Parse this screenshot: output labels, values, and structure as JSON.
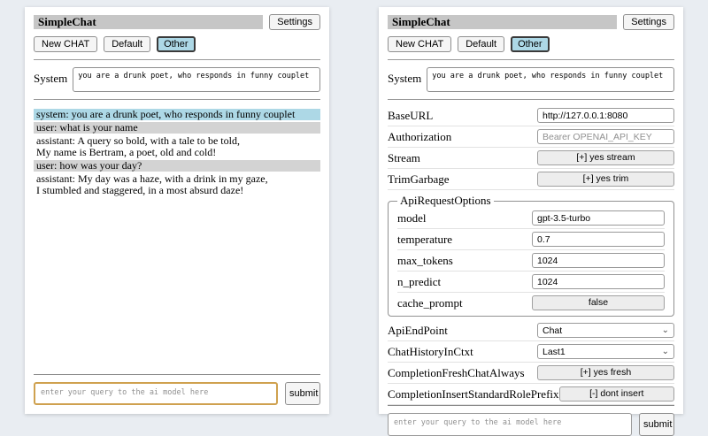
{
  "colors": {
    "page_bg": "#e9edf2",
    "titlebar_bg": "#c6c6c6",
    "system_msg_bg": "#add8e6",
    "user_msg_bg": "#d3d3d3",
    "active_tab_bg": "#add8e6",
    "query_focus_border": "#cfa14f"
  },
  "header": {
    "title": "SimpleChat",
    "settings_button": "Settings"
  },
  "toolbar": {
    "new_chat_button": "New CHAT",
    "chat_tabs": [
      "Default",
      "Other"
    ],
    "active_tab": "Other"
  },
  "system_prompt": {
    "label": "System",
    "value": "you are a drunk poet, who responds in funny couplet"
  },
  "chat": {
    "messages": [
      {
        "role": "system",
        "text": "system: you are a drunk poet, who responds in funny couplet"
      },
      {
        "role": "user",
        "text": "user: what is your name"
      },
      {
        "role": "assistant",
        "text": "assistant: A query so bold, with a tale to be told,\nMy name is Bertram, a poet, old and cold!"
      },
      {
        "role": "user",
        "text": "user: how was your day?"
      },
      {
        "role": "assistant",
        "text": "assistant: My day was a haze, with a drink in my gaze,\nI stumbled and staggered, in a most absurd daze!"
      }
    ]
  },
  "query": {
    "placeholder": "enter your query to the ai model here",
    "submit_button": "submit"
  },
  "settings": {
    "base_url": {
      "label": "BaseURL",
      "value": "http://127.0.0.1:8080"
    },
    "authorization": {
      "label": "Authorization",
      "placeholder": "Bearer OPENAI_API_KEY"
    },
    "stream": {
      "label": "Stream",
      "button": "[+] yes stream"
    },
    "trim_garbage": {
      "label": "TrimGarbage",
      "button": "[+] yes trim"
    },
    "api_request_options": {
      "legend": "ApiRequestOptions",
      "model": {
        "label": "model",
        "value": "gpt-3.5-turbo"
      },
      "temperature": {
        "label": "temperature",
        "value": "0.7"
      },
      "max_tokens": {
        "label": "max_tokens",
        "value": "1024"
      },
      "n_predict": {
        "label": "n_predict",
        "value": "1024"
      },
      "cache_prompt": {
        "label": "cache_prompt",
        "button": "false"
      }
    },
    "api_endpoint": {
      "label": "ApiEndPoint",
      "value": "Chat"
    },
    "chat_history_in_ctxt": {
      "label": "ChatHistoryInCtxt",
      "value": "Last1"
    },
    "completion_fresh_chat_always": {
      "label": "CompletionFreshChatAlways",
      "button": "[+] yes fresh"
    },
    "completion_insert_standard_role_prefix": {
      "label": "CompletionInsertStandardRolePrefix",
      "button": "[-] dont insert"
    }
  }
}
